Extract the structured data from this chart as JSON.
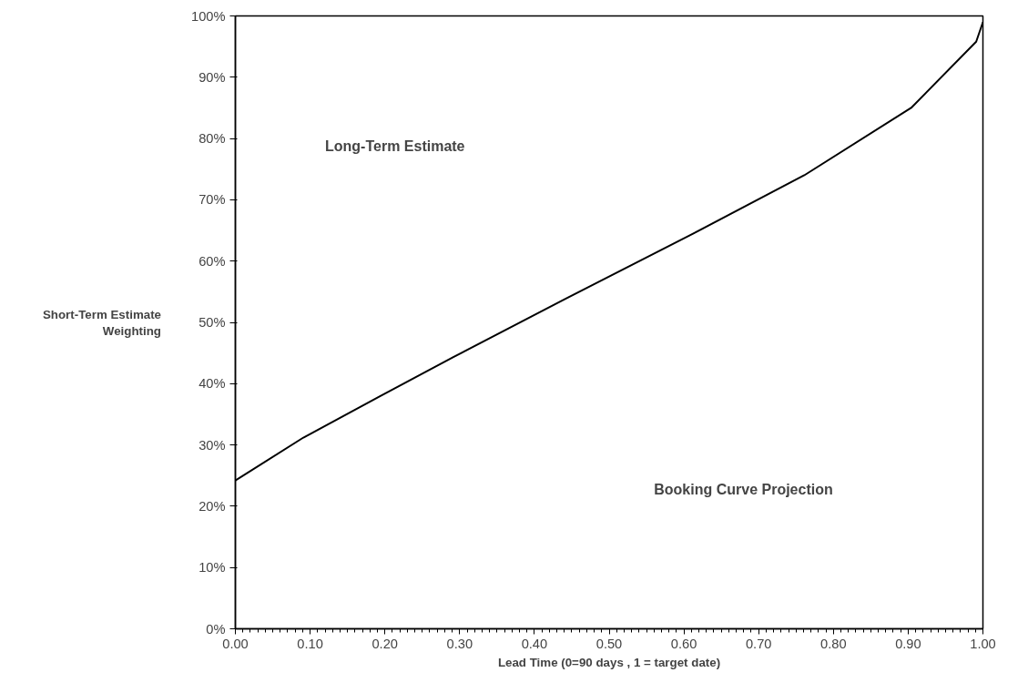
{
  "chart_data": {
    "type": "line",
    "xlabel": "Lead Time (0=90 days , 1 = target date)",
    "ylabel": "Short-Term Estimate Weighting",
    "x": [
      0,
      0.091,
      0.194,
      0.291,
      0.441,
      0.608,
      0.761,
      0.904,
      0.991,
      1.0
    ],
    "series": [
      {
        "color": "#000000",
        "values": [
          24.2,
          31.2,
          38.0,
          44.3,
          53.8,
          64.2,
          74.0,
          85.0,
          95.8,
          99
        ]
      }
    ],
    "xlim": [
      0,
      1
    ],
    "ylim": [
      0,
      100
    ],
    "xticks": [
      {
        "value": 0,
        "label": "0.00"
      },
      {
        "value": 0.1,
        "label": "0.10"
      },
      {
        "value": 0.2,
        "label": "0.20"
      },
      {
        "value": 0.3,
        "label": "0.30"
      },
      {
        "value": 0.4,
        "label": "0.40"
      },
      {
        "value": 0.5,
        "label": "0.50"
      },
      {
        "value": 0.6,
        "label": "0.60"
      },
      {
        "value": 0.7,
        "label": "0.70"
      },
      {
        "value": 0.8,
        "label": "0.80"
      },
      {
        "value": 0.9,
        "label": "0.90"
      },
      {
        "value": 1,
        "label": "1.00"
      }
    ],
    "yticks": [
      {
        "value": 0,
        "label": "0%"
      },
      {
        "value": 10,
        "label": "10%"
      },
      {
        "value": 20,
        "label": "20%"
      },
      {
        "value": 30,
        "label": "30%"
      },
      {
        "value": 40,
        "label": "40%"
      },
      {
        "value": 50,
        "label": "50%"
      },
      {
        "value": 60,
        "label": "60%"
      },
      {
        "value": 70,
        "label": "70%"
      },
      {
        "value": 80,
        "label": "80%"
      },
      {
        "value": 90,
        "label": "90%"
      },
      {
        "value": 100,
        "label": "100%"
      }
    ],
    "annotations": [
      "Long-Term Estimate",
      "Booking Curve Projection"
    ],
    "grid": false,
    "marker": "none",
    "line_style": "solid"
  }
}
